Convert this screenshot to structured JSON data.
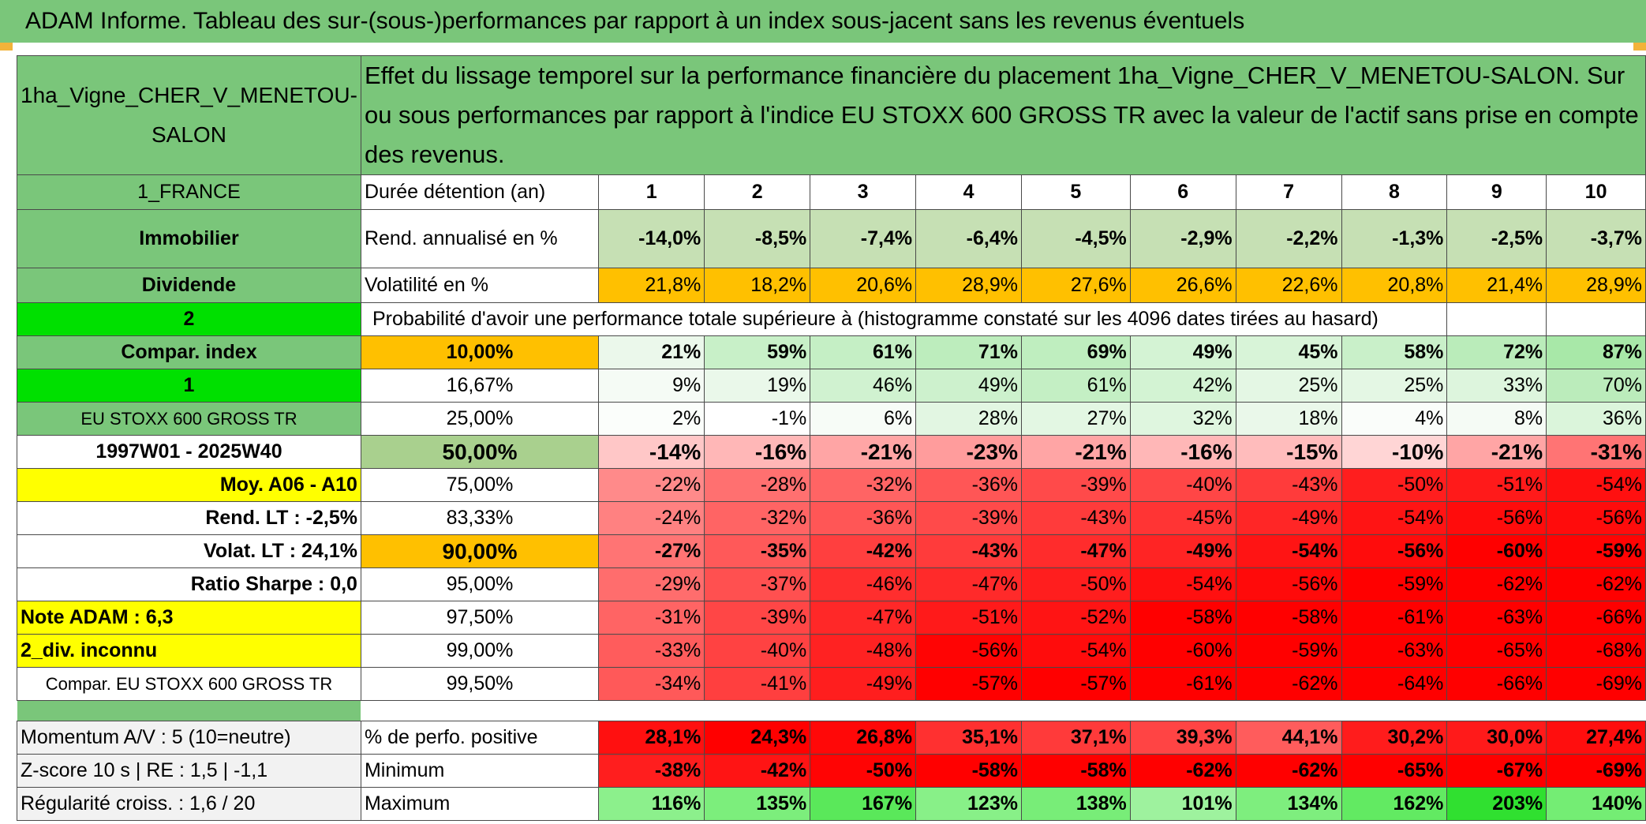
{
  "title": "ADAM Informe. Tableau des sur-(sous-)performances par rapport à un index sous-jacent sans les revenus éventuels",
  "header": {
    "asset": "1ha_Vigne_CHER_V_MENETOU-SALON",
    "description": "Effet du lissage temporel sur la performance financière du placement 1ha_Vigne_CHER_V_MENETOU-SALON. Sur ou sous performances par rapport à l'indice EU STOXX 600 GROSS TR avec la valeur de l'actif sans prise en compte des revenus."
  },
  "years_label": "Durée détention (an)",
  "years": [
    "1",
    "2",
    "3",
    "4",
    "5",
    "6",
    "7",
    "8",
    "9",
    "10"
  ],
  "rend": {
    "label": "Rend. annualisé en %",
    "values": [
      "-14,0%",
      "-8,5%",
      "-7,4%",
      "-6,4%",
      "-4,5%",
      "-2,9%",
      "-2,2%",
      "-1,3%",
      "-2,5%",
      "-3,7%"
    ]
  },
  "vol": {
    "label": "Volatilité en %",
    "values": [
      "21,8%",
      "18,2%",
      "20,6%",
      "28,9%",
      "27,6%",
      "26,6%",
      "22,6%",
      "20,8%",
      "21,4%",
      "28,9%"
    ]
  },
  "side": {
    "country": "1_FRANCE",
    "category": "Immobilier",
    "dividend": "Dividende",
    "code2": "2",
    "compar": "Compar. index",
    "code1": "1",
    "index": "EU STOXX 600 GROSS TR",
    "period": "1997W01 - 2025W40",
    "moy": "Moy. A06 - A10",
    "rendlt": "Rend. LT :    -2,5%",
    "volatlt": "Volat. LT :    24,1%",
    "sharpe": "Ratio Sharpe :     0,0",
    "note": "Note ADAM : 6,3",
    "div": "2_div. inconnu",
    "comparidx": "Compar. EU STOXX 600 GROSS TR"
  },
  "proba_label": "Probabilité d'avoir une performance totale supérieure à (histogramme constaté sur les 4096 dates tirées au hasard)",
  "quantiles": [
    {
      "q": "10,00%",
      "values": [
        "21%",
        "59%",
        "61%",
        "71%",
        "69%",
        "49%",
        "45%",
        "58%",
        "72%",
        "87%"
      ]
    },
    {
      "q": "16,67%",
      "values": [
        "9%",
        "19%",
        "46%",
        "49%",
        "61%",
        "42%",
        "25%",
        "25%",
        "33%",
        "70%"
      ]
    },
    {
      "q": "25,00%",
      "values": [
        "2%",
        "-1%",
        "6%",
        "28%",
        "27%",
        "32%",
        "18%",
        "4%",
        "8%",
        "36%"
      ]
    },
    {
      "q": "50,00%",
      "values": [
        "-14%",
        "-16%",
        "-21%",
        "-23%",
        "-21%",
        "-16%",
        "-15%",
        "-10%",
        "-21%",
        "-31%"
      ]
    },
    {
      "q": "75,00%",
      "values": [
        "-22%",
        "-28%",
        "-32%",
        "-36%",
        "-39%",
        "-40%",
        "-43%",
        "-50%",
        "-51%",
        "-54%"
      ]
    },
    {
      "q": "83,33%",
      "values": [
        "-24%",
        "-32%",
        "-36%",
        "-39%",
        "-43%",
        "-45%",
        "-49%",
        "-54%",
        "-56%",
        "-56%"
      ]
    },
    {
      "q": "90,00%",
      "values": [
        "-27%",
        "-35%",
        "-42%",
        "-43%",
        "-47%",
        "-49%",
        "-54%",
        "-56%",
        "-60%",
        "-59%"
      ]
    },
    {
      "q": "95,00%",
      "values": [
        "-29%",
        "-37%",
        "-46%",
        "-47%",
        "-50%",
        "-54%",
        "-56%",
        "-59%",
        "-62%",
        "-62%"
      ]
    },
    {
      "q": "97,50%",
      "values": [
        "-31%",
        "-39%",
        "-47%",
        "-51%",
        "-52%",
        "-58%",
        "-58%",
        "-61%",
        "-63%",
        "-66%"
      ]
    },
    {
      "q": "99,00%",
      "values": [
        "-33%",
        "-40%",
        "-48%",
        "-56%",
        "-54%",
        "-60%",
        "-59%",
        "-63%",
        "-65%",
        "-68%"
      ]
    },
    {
      "q": "99,50%",
      "values": [
        "-34%",
        "-41%",
        "-49%",
        "-57%",
        "-57%",
        "-61%",
        "-62%",
        "-64%",
        "-66%",
        "-69%"
      ]
    }
  ],
  "bottom": [
    {
      "side": "Momentum A/V : 5 (10=neutre)",
      "label": "% de perfo. positive",
      "values": [
        "28,1%",
        "24,3%",
        "26,8%",
        "35,1%",
        "37,1%",
        "39,3%",
        "44,1%",
        "30,2%",
        "30,0%",
        "27,4%"
      ]
    },
    {
      "side": "Z-score 10 s | RE : 1,5 | -1,1",
      "label": "Minimum",
      "values": [
        "-38%",
        "-42%",
        "-50%",
        "-58%",
        "-58%",
        "-62%",
        "-62%",
        "-65%",
        "-67%",
        "-69%"
      ]
    },
    {
      "side": "Régularité croiss. : 1,6 / 20",
      "label": "Maximum",
      "values": [
        "116%",
        "135%",
        "167%",
        "123%",
        "138%",
        "101%",
        "134%",
        "162%",
        "203%",
        "140%"
      ]
    }
  ],
  "colors": {
    "title_green": "#7ac67a",
    "yellow": "#ffff00",
    "orange": "#ffc000",
    "bright_green": "#00e000",
    "red": "#ff0000"
  }
}
